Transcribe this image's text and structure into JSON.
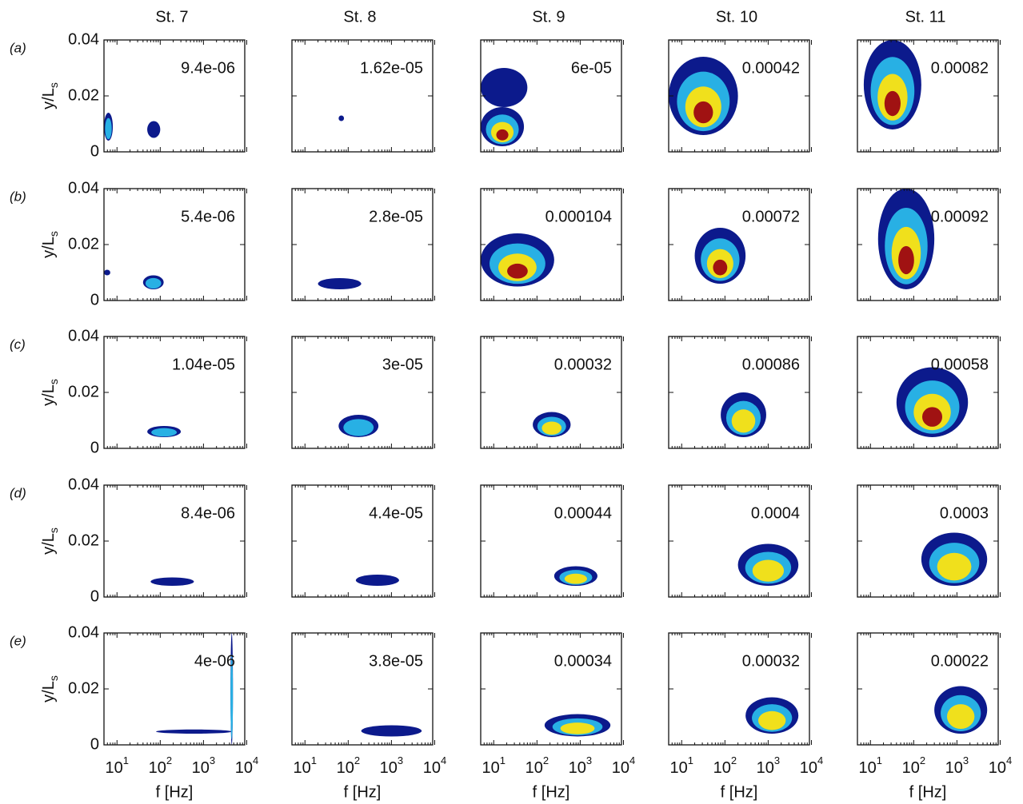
{
  "chart_data": {
    "type": "contour",
    "columns": [
      "St. 7",
      "St. 8",
      "St. 9",
      "St. 10",
      "St. 11"
    ],
    "rows": [
      "(a)",
      "(b)",
      "(c)",
      "(d)",
      "(e)"
    ],
    "xlabel": "f [Hz]",
    "ylabel": "y/L",
    "ylabel_sub": "s",
    "xlog": true,
    "xlim": [
      5,
      9000
    ],
    "xticks": [
      {
        "value": 10,
        "label": "10",
        "exponent": "1"
      },
      {
        "value": 100,
        "label": "10",
        "exponent": "2"
      },
      {
        "value": 1000,
        "label": "10",
        "exponent": "3"
      },
      {
        "value": 10000,
        "label": "10",
        "exponent": "4"
      }
    ],
    "ylim": [
      0,
      0.04
    ],
    "yticks": [
      0,
      0.02,
      0.04
    ],
    "level_colors": [
      "#0c1a8c",
      "#28b0e4",
      "#f0e01c",
      "#a01212"
    ],
    "annotations": [
      [
        "9.4e-06",
        "1.62e-05",
        "6e-05",
        "0.00042",
        "0.00082"
      ],
      [
        "5.4e-06",
        "2.8e-05",
        "0.000104",
        "0.00072",
        "0.00092"
      ],
      [
        "1.04e-05",
        "3e-05",
        "0.00032",
        "0.00086",
        "0.00058"
      ],
      [
        "8.4e-06",
        "4.4e-05",
        "0.00044",
        "0.0004",
        "0.0003"
      ],
      [
        "4e-06",
        "3.8e-05",
        "0.00034",
        "0.00032",
        "0.00022"
      ]
    ],
    "blobs": [
      [
        [
          {
            "f": [
              5,
              8
            ],
            "y": [
              0.004,
              0.014
            ],
            "levels": 2
          },
          {
            "f": [
              50,
              100
            ],
            "y": [
              0.005,
              0.011
            ],
            "levels": 1
          }
        ],
        [
          {
            "f": [
              60,
              80
            ],
            "y": [
              0.011,
              0.013
            ],
            "levels": 1
          }
        ],
        [
          {
            "f": [
              5,
              50
            ],
            "y": [
              0.002,
              0.016
            ],
            "levels": 4
          },
          {
            "f": [
              5,
              60
            ],
            "y": [
              0.016,
              0.03
            ],
            "levels": 1
          }
        ],
        [
          {
            "f": [
              5,
              200
            ],
            "y": [
              0.006,
              0.034
            ],
            "levels": 4
          }
        ],
        [
          {
            "f": [
              7,
              150
            ],
            "y": [
              0.008,
              0.04
            ],
            "levels": 4
          }
        ]
      ],
      [
        [
          {
            "f": [
              40,
              120
            ],
            "y": [
              0.004,
              0.009
            ],
            "levels": 2
          },
          {
            "f": [
              5,
              7
            ],
            "y": [
              0.009,
              0.011
            ],
            "levels": 1
          }
        ],
        [
          {
            "f": [
              20,
              200
            ],
            "y": [
              0.004,
              0.008
            ],
            "levels": 1
          }
        ],
        [
          {
            "f": [
              5,
              250
            ],
            "y": [
              0.005,
              0.024
            ],
            "levels": 4
          }
        ],
        [
          {
            "f": [
              20,
              300
            ],
            "y": [
              0.006,
              0.026
            ],
            "levels": 4
          }
        ],
        [
          {
            "f": [
              15,
              300
            ],
            "y": [
              0.004,
              0.04
            ],
            "levels": 4
          }
        ]
      ],
      [
        [
          {
            "f": [
              50,
              300
            ],
            "y": [
              0.004,
              0.008
            ],
            "levels": 2
          }
        ],
        [
          {
            "f": [
              60,
              500
            ],
            "y": [
              0.004,
              0.012
            ],
            "levels": 2
          }
        ],
        [
          {
            "f": [
              80,
              600
            ],
            "y": [
              0.004,
              0.013
            ],
            "levels": 3
          }
        ],
        [
          {
            "f": [
              80,
              900
            ],
            "y": [
              0.004,
              0.02
            ],
            "levels": 3
          }
        ],
        [
          {
            "f": [
              40,
              1800
            ],
            "y": [
              0.004,
              0.029
            ],
            "levels": 4
          }
        ]
      ],
      [
        [
          {
            "f": [
              60,
              600
            ],
            "y": [
              0.004,
              0.007
            ],
            "levels": 1
          }
        ],
        [
          {
            "f": [
              150,
              1500
            ],
            "y": [
              0.004,
              0.008
            ],
            "levels": 1
          }
        ],
        [
          {
            "f": [
              250,
              2500
            ],
            "y": [
              0.004,
              0.011
            ],
            "levels": 3
          }
        ],
        [
          {
            "f": [
              200,
              5000
            ],
            "y": [
              0.004,
              0.019
            ],
            "levels": 3
          }
        ],
        [
          {
            "f": [
              150,
              5000
            ],
            "y": [
              0.004,
              0.023
            ],
            "levels": 3
          }
        ]
      ],
      [
        [
          {
            "f": [
              80,
              4500
            ],
            "y": [
              0.004,
              0.0055
            ],
            "levels": 1
          },
          {
            "f": [
              4300,
              4700
            ],
            "y": [
              0,
              0.04
            ],
            "levels": 2
          }
        ],
        [
          {
            "f": [
              200,
              5000
            ],
            "y": [
              0.003,
              0.007
            ],
            "levels": 1
          }
        ],
        [
          {
            "f": [
              150,
              5000
            ],
            "y": [
              0.003,
              0.011
            ],
            "levels": 3
          }
        ],
        [
          {
            "f": [
              300,
              5000
            ],
            "y": [
              0.004,
              0.017
            ],
            "levels": 3
          }
        ],
        [
          {
            "f": [
              300,
              5000
            ],
            "y": [
              0.004,
              0.021
            ],
            "levels": 3
          }
        ]
      ]
    ]
  }
}
